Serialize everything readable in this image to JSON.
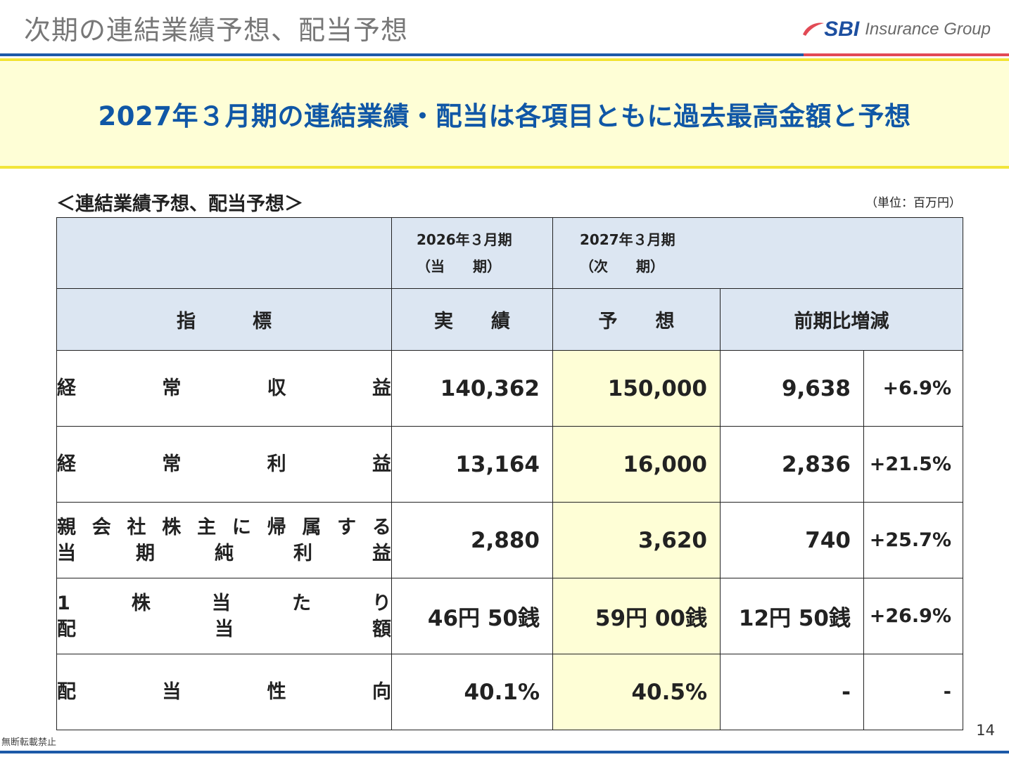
{
  "header": {
    "title": "次期の連結業績予想、配当予想",
    "logo_text_bold": "SBI",
    "logo_text_rest": "Insurance Group"
  },
  "banner": {
    "text": "2027年３月期の連結業績・配当は各項目ともに過去最高金額と予想"
  },
  "section": {
    "label": "＜連結業績予想、配当予想＞",
    "unit": "（単位：百万円）"
  },
  "table": {
    "period_current_year": "2026年３月期",
    "period_current_sub": "（当　　期）",
    "period_next_year": "2027年３月期",
    "period_next_sub": "（次　　期）",
    "col_indicator": "指　　　標",
    "col_actual": "実　　績",
    "col_forecast": "予　　想",
    "col_change": "前期比増減",
    "rows": [
      {
        "label_line1": [
          "経",
          "常",
          "収",
          "益"
        ],
        "label_line2": [],
        "actual": "140,362",
        "forecast": "150,000",
        "change": "9,638",
        "change_pct": "+6.9%"
      },
      {
        "label_line1": [
          "経",
          "常",
          "利",
          "益"
        ],
        "label_line2": [],
        "actual": "13,164",
        "forecast": "16,000",
        "change": "2,836",
        "change_pct": "+21.5%"
      },
      {
        "label_line1": [
          "親",
          "会",
          "社",
          "株",
          "主",
          "に",
          "帰",
          "属",
          "す",
          "る"
        ],
        "label_line2": [
          "当",
          "期",
          "純",
          "利",
          "益"
        ],
        "actual": "2,880",
        "forecast": "3,620",
        "change": "740",
        "change_pct": "+25.7%"
      },
      {
        "label_line1": [
          "1",
          "株",
          "当",
          "た",
          "り"
        ],
        "label_line2": [
          "配",
          "当",
          "額"
        ],
        "actual": "46円 50銭",
        "forecast": "59円 00銭",
        "change": "12円 50銭",
        "change_pct": "+26.9%"
      },
      {
        "label_line1": [
          "配",
          "当",
          "性",
          "向"
        ],
        "label_line2": [],
        "actual": "40.1%",
        "forecast": "40.5%",
        "change": "-",
        "change_pct": "-"
      }
    ]
  },
  "footer": {
    "page_number": "14",
    "note": "無断転載禁止"
  },
  "colors": {
    "brand_blue": "#1c5aa8",
    "accent_red": "#e24a55",
    "accent_yellow": "#f2e53a",
    "banner_bg": "#fefed6",
    "header_cell_bg": "#dce6f2",
    "headline_text": "#1057a6"
  }
}
